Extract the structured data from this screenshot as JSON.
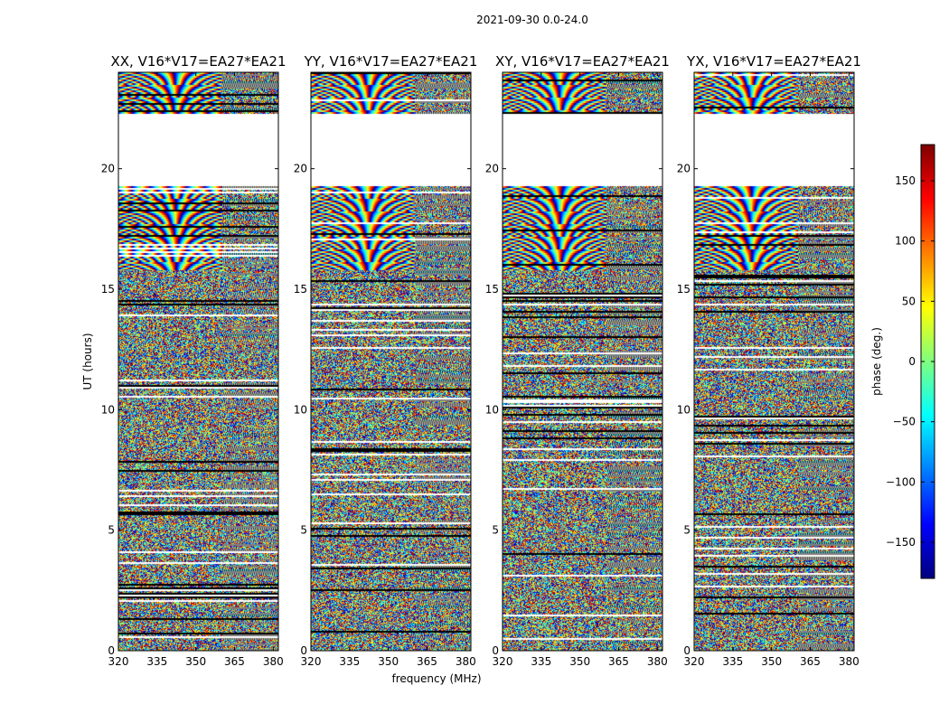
{
  "figure": {
    "suptitle": "2021-09-30 0.0-24.0"
  },
  "chart_data": {
    "type": "heatmap",
    "xlabel": "frequency (MHz)",
    "ylabel": "UT (hours)",
    "xlim": [
      320,
      382
    ],
    "ylim": [
      0,
      24
    ],
    "xticks": [
      "320",
      "335",
      "350",
      "365",
      "380"
    ],
    "yticks": [
      "0",
      "5",
      "10",
      "15",
      "20"
    ],
    "panels": [
      {
        "title": "XX, V16*V17=EA27*EA21"
      },
      {
        "title": "YY, V16*V17=EA27*EA21"
      },
      {
        "title": "XY, V16*V17=EA27*EA21"
      },
      {
        "title": "YX, V16*V17=EA27*EA21"
      }
    ],
    "colorbar": {
      "label": "phase (deg.)",
      "range": [
        -180,
        180
      ],
      "ticks": [
        "150",
        "100",
        "50",
        "0",
        "−50",
        "−100",
        "−150"
      ],
      "colormap": "jet"
    },
    "no_data_hours": [
      22.3,
      19.3
    ]
  }
}
